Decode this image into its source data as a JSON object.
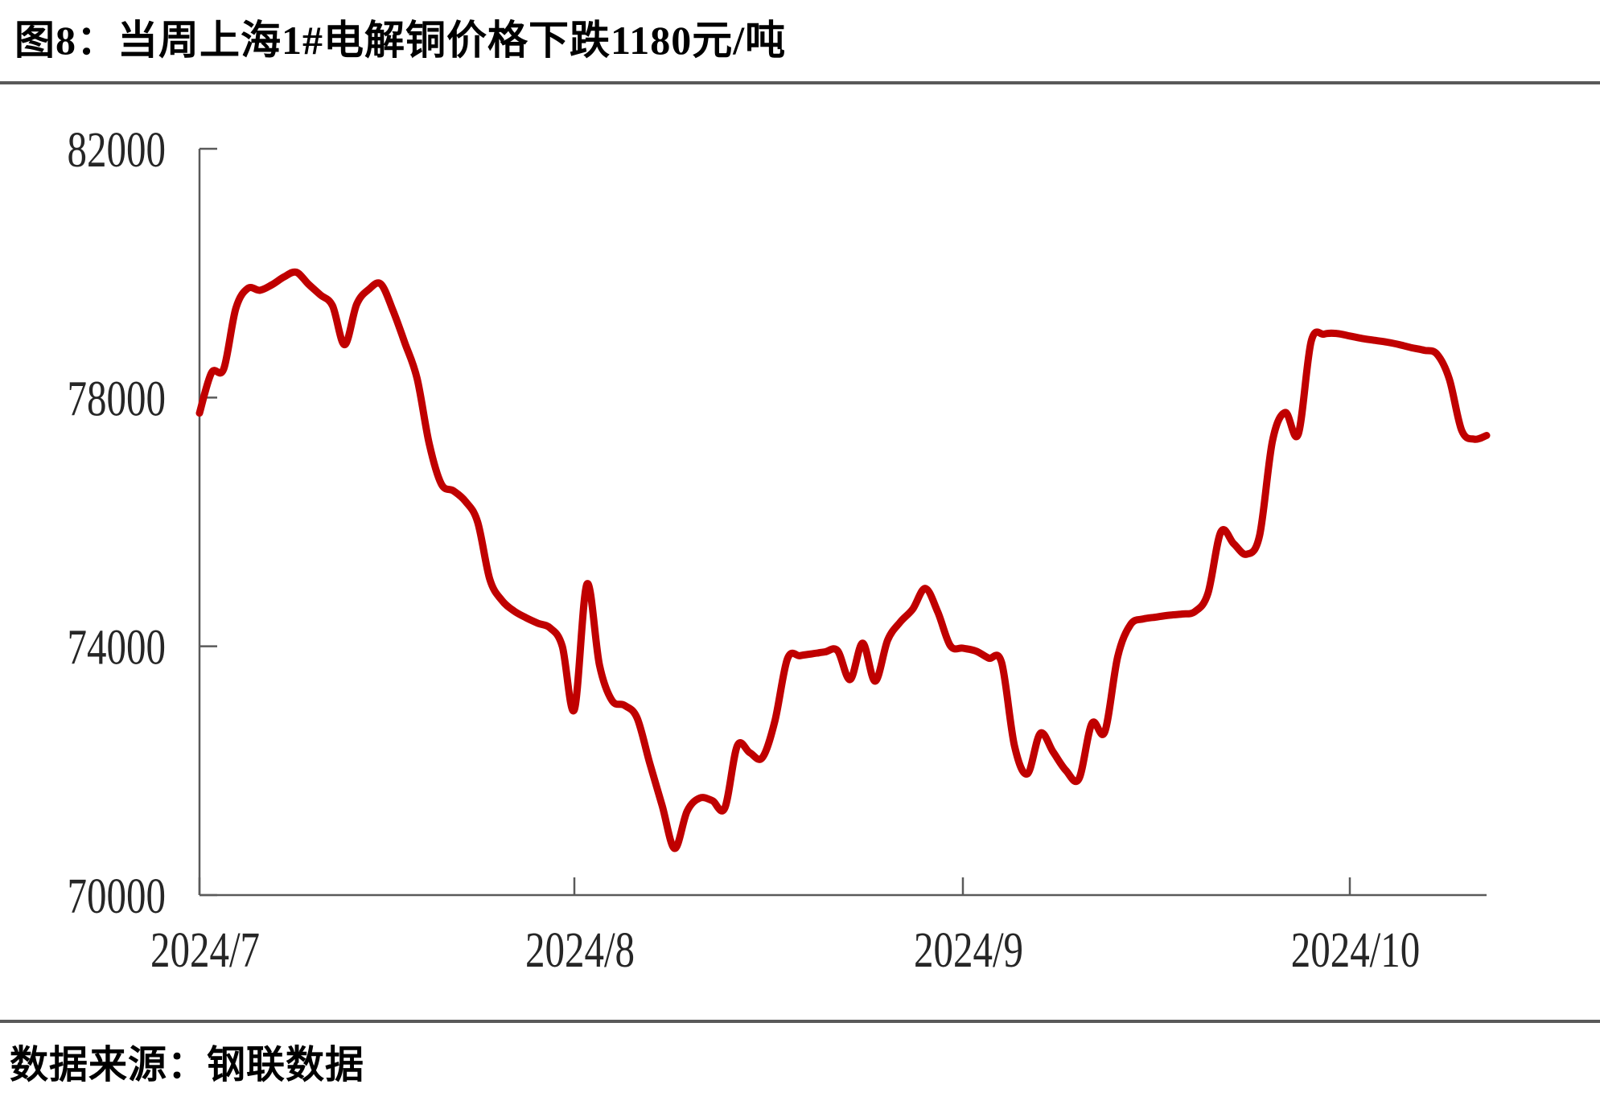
{
  "header": {
    "title": "图8：当周上海1#电解铜价格下跌1180元/吨"
  },
  "footer": {
    "source_label": "数据来源：钢联数据"
  },
  "chart_data": {
    "type": "line",
    "title": "当周上海1#电解铜价格下跌1180元/吨",
    "grid": false,
    "legend": "none",
    "y_axis": {
      "min": 70000,
      "max": 82000,
      "ticks": [
        {
          "value": 82000,
          "label": "82000"
        },
        {
          "value": 78000,
          "label": "78000"
        },
        {
          "value": 74000,
          "label": "74000"
        },
        {
          "value": 70000,
          "label": "70000"
        }
      ]
    },
    "x_axis": {
      "ticks": [
        {
          "month": 7,
          "label": "2024/7"
        },
        {
          "month": 8,
          "label": "2024/8"
        },
        {
          "month": 9,
          "label": "2024/9"
        },
        {
          "month": 10,
          "label": "2024/10"
        }
      ],
      "month_start_frac": {
        "7": 0,
        "8": 0.29125,
        "9": 0.593125,
        "10": 0.89375,
        "11": 1.1932
      },
      "days_in_month": {
        "7": 31,
        "8": 31,
        "9": 30,
        "10": 31
      }
    },
    "style": {
      "axis_color": "#5a5a5a",
      "text_color": "#262626",
      "divider_color": "#595959"
    },
    "series": [
      {
        "name": "上海1#电解铜价格(元/吨)",
        "color": "#c00000",
        "points": [
          [
            7,
            1,
            77750
          ],
          [
            7,
            2,
            78400
          ],
          [
            7,
            3,
            78460
          ],
          [
            7,
            4,
            79430
          ],
          [
            7,
            5,
            79755
          ],
          [
            7,
            6,
            79725
          ],
          [
            7,
            7,
            79815
          ],
          [
            7,
            8,
            79940
          ],
          [
            7,
            9,
            80015
          ],
          [
            7,
            10,
            79825
          ],
          [
            7,
            11,
            79650
          ],
          [
            7,
            12,
            79475
          ],
          [
            7,
            13,
            78850
          ],
          [
            7,
            14,
            79500
          ],
          [
            7,
            15,
            79740
          ],
          [
            7,
            16,
            79825
          ],
          [
            7,
            17,
            79400
          ],
          [
            7,
            18,
            78870
          ],
          [
            7,
            19,
            78300
          ],
          [
            7,
            20,
            77255
          ],
          [
            7,
            21,
            76610
          ],
          [
            7,
            22,
            76500
          ],
          [
            7,
            23,
            76330
          ],
          [
            7,
            24,
            76000
          ],
          [
            7,
            25,
            75080
          ],
          [
            7,
            26,
            74740
          ],
          [
            7,
            27,
            74570
          ],
          [
            7,
            28,
            74460
          ],
          [
            7,
            29,
            74370
          ],
          [
            7,
            30,
            74295
          ],
          [
            7,
            31,
            74000
          ],
          [
            8,
            1,
            72980
          ],
          [
            8,
            2,
            75000
          ],
          [
            8,
            3,
            73700
          ],
          [
            8,
            4,
            73130
          ],
          [
            8,
            5,
            73050
          ],
          [
            8,
            6,
            72850
          ],
          [
            8,
            7,
            72130
          ],
          [
            8,
            8,
            71440
          ],
          [
            8,
            9,
            70750
          ],
          [
            8,
            10,
            71350
          ],
          [
            8,
            11,
            71560
          ],
          [
            8,
            12,
            71520
          ],
          [
            8,
            13,
            71400
          ],
          [
            8,
            14,
            72400
          ],
          [
            8,
            15,
            72290
          ],
          [
            8,
            16,
            72210
          ],
          [
            8,
            17,
            72800
          ],
          [
            8,
            18,
            73800
          ],
          [
            8,
            19,
            73850
          ],
          [
            8,
            20,
            73880
          ],
          [
            8,
            21,
            73910
          ],
          [
            8,
            22,
            73930
          ],
          [
            8,
            23,
            73465
          ],
          [
            8,
            24,
            74050
          ],
          [
            8,
            25,
            73440
          ],
          [
            8,
            26,
            74100
          ],
          [
            8,
            27,
            74390
          ],
          [
            8,
            28,
            74600
          ],
          [
            8,
            29,
            74930
          ],
          [
            8,
            30,
            74550
          ],
          [
            8,
            31,
            74010
          ],
          [
            9,
            1,
            73970
          ],
          [
            9,
            2,
            73925
          ],
          [
            9,
            3,
            73810
          ],
          [
            9,
            4,
            73740
          ],
          [
            9,
            5,
            72400
          ],
          [
            9,
            6,
            71950
          ],
          [
            9,
            7,
            72600
          ],
          [
            9,
            8,
            72300
          ],
          [
            9,
            9,
            72000
          ],
          [
            9,
            10,
            71870
          ],
          [
            9,
            11,
            72760
          ],
          [
            9,
            12,
            72625
          ],
          [
            9,
            13,
            73830
          ],
          [
            9,
            14,
            74350
          ],
          [
            9,
            15,
            74440
          ],
          [
            9,
            16,
            74470
          ],
          [
            9,
            17,
            74500
          ],
          [
            9,
            18,
            74520
          ],
          [
            9,
            19,
            74560
          ],
          [
            9,
            20,
            74850
          ],
          [
            9,
            21,
            75840
          ],
          [
            9,
            22,
            75650
          ],
          [
            9,
            23,
            75480
          ],
          [
            9,
            24,
            75780
          ],
          [
            9,
            25,
            77300
          ],
          [
            9,
            26,
            77760
          ],
          [
            9,
            27,
            77410
          ],
          [
            9,
            28,
            78900
          ],
          [
            9,
            29,
            79020
          ],
          [
            9,
            30,
            79030
          ],
          [
            10,
            1,
            78990
          ],
          [
            10,
            2,
            78950
          ],
          [
            10,
            3,
            78920
          ],
          [
            10,
            4,
            78890
          ],
          [
            10,
            5,
            78850
          ],
          [
            10,
            6,
            78800
          ],
          [
            10,
            7,
            78760
          ],
          [
            10,
            8,
            78700
          ],
          [
            10,
            9,
            78300
          ],
          [
            10,
            10,
            77470
          ],
          [
            10,
            11,
            77330
          ],
          [
            10,
            12,
            77390
          ]
        ]
      }
    ]
  }
}
